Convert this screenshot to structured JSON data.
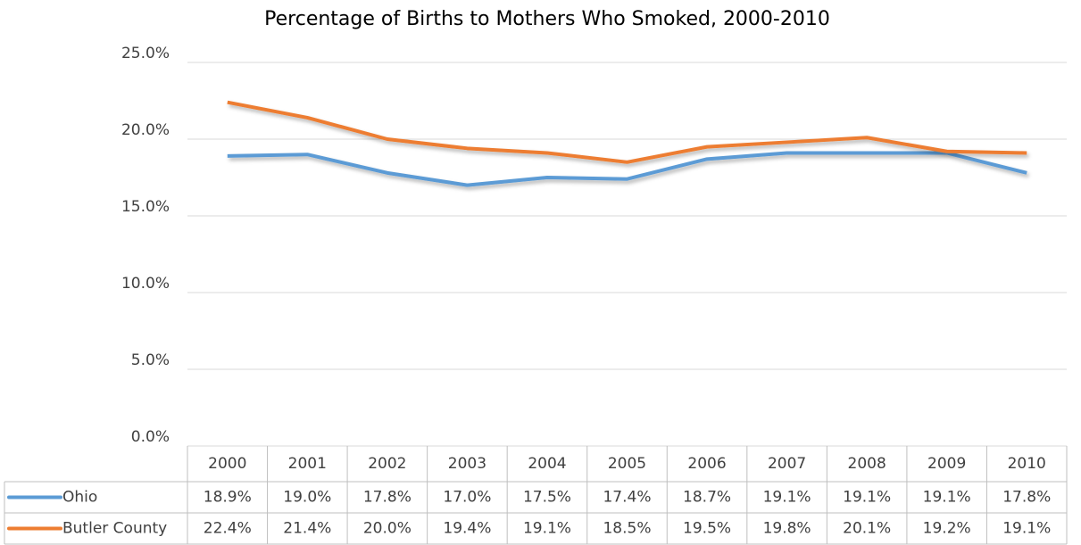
{
  "chart_data": {
    "type": "line",
    "title": "Percentage of Births to Mothers Who Smoked, 2000-2010",
    "categories": [
      "2000",
      "2001",
      "2002",
      "2003",
      "2004",
      "2005",
      "2006",
      "2007",
      "2008",
      "2009",
      "2010"
    ],
    "series": [
      {
        "name": "Ohio",
        "color": "#5b9bd5",
        "values": [
          18.9,
          19.0,
          17.8,
          17.0,
          17.5,
          17.4,
          18.7,
          19.1,
          19.1,
          19.1,
          17.8
        ],
        "value_labels": [
          "18.9%",
          "19.0%",
          "17.8%",
          "17.0%",
          "17.5%",
          "17.4%",
          "18.7%",
          "19.1%",
          "19.1%",
          "19.1%",
          "17.8%"
        ]
      },
      {
        "name": "Butler County",
        "color": "#ed7d31",
        "values": [
          22.4,
          21.4,
          20.0,
          19.4,
          19.1,
          18.5,
          19.5,
          19.8,
          20.1,
          19.2,
          19.1
        ],
        "value_labels": [
          "22.4%",
          "21.4%",
          "20.0%",
          "19.4%",
          "19.1%",
          "18.5%",
          "19.5%",
          "19.8%",
          "20.1%",
          "19.2%",
          "19.1%"
        ]
      }
    ],
    "ylim": [
      0,
      25
    ],
    "yticks": [
      {
        "value": 0,
        "label": "0.0%"
      },
      {
        "value": 5,
        "label": "5.0%"
      },
      {
        "value": 10,
        "label": "10.0%"
      },
      {
        "value": 15,
        "label": "15.0%"
      },
      {
        "value": 20,
        "label": "20.0%"
      },
      {
        "value": 25,
        "label": "25.0%"
      }
    ],
    "grid": true
  }
}
